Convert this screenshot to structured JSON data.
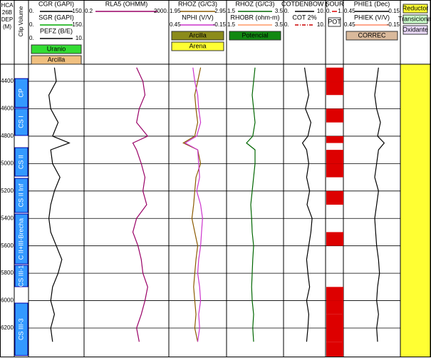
{
  "chart_data": {
    "type": "well-log",
    "depth_header": [
      "HCA",
      "26B",
      "DEP",
      "(M)"
    ],
    "zone_header": "Clip Volume",
    "ylim": [
      4275,
      6408
    ],
    "yticks": [
      4400,
      4600,
      4800,
      5000,
      5200,
      5400,
      5600,
      5800,
      6000,
      6200
    ],
    "depth": [
      4300,
      4400,
      4500,
      4600,
      4700,
      4800,
      4850,
      4900,
      5000,
      5100,
      5200,
      5300,
      5400,
      5500,
      5600,
      5700,
      5800,
      5900,
      6000,
      6100,
      6200,
      6300
    ],
    "zones": [
      {
        "label": "CP",
        "top": 4380,
        "base": 4590
      },
      {
        "label": "CS I",
        "top": 4598,
        "base": 4795
      },
      {
        "label": "CS II",
        "top": 4884,
        "base": 5092
      },
      {
        "label": "CS II Inf",
        "top": 5108,
        "base": 5357
      },
      {
        "label": "C II+III-Brecha",
        "top": 5368,
        "base": 5732
      },
      {
        "label": "CS III-1",
        "top": 5742,
        "base": 5898
      },
      {
        "label": "CS III-3",
        "top": 6018,
        "base": 6400
      }
    ],
    "tracks": [
      {
        "curves": [
          {
            "name": "CGR (GAPI)",
            "color": "#000000",
            "xlim": [
              0,
              150
            ],
            "xticks": [
              {
                "value": 0,
                "label": "0."
              },
              {
                "value": 150,
                "label": "150."
              }
            ],
            "values": [
              70,
              75,
              55,
              60,
              80,
              65,
              110,
              60,
              65,
              85,
              70,
              60,
              55,
              60,
              75,
              90,
              80,
              65,
              60,
              70,
              60,
              65
            ]
          },
          {
            "name": "SGR (GAPI)",
            "color": "#00aa00",
            "xlim": [
              0,
              150
            ],
            "xticks": [
              {
                "value": 0,
                "label": "0."
              },
              {
                "value": 150,
                "label": "150."
              }
            ]
          },
          {
            "name": "PEFZ (B/E)",
            "color": "#000000",
            "xlim": [
              0,
              10
            ],
            "xticks": [
              {
                "value": 0,
                "label": "0."
              },
              {
                "value": 10,
                "label": "10."
              }
            ]
          }
        ],
        "legends": [
          {
            "label": "Uranio",
            "color": "#33dd33"
          },
          {
            "label": "Arcilla",
            "color": "#f0c080"
          }
        ]
      },
      {
        "curves": [
          {
            "name": "RLA5 (OHMM)",
            "color": "#990066",
            "log": true,
            "xlim": [
              0.2,
              2000
            ],
            "xticks": [
              0.2,
              {
                "value": 2000,
                "label": "2000."
              }
            ],
            "values": [
              60,
              120,
              150,
              80,
              60,
              200,
              40,
              60,
              100,
              150,
              120,
              180,
              60,
              40,
              70,
              100,
              120,
              200,
              150,
              100,
              60,
              80
            ]
          }
        ],
        "legends": []
      },
      {
        "curves": [
          {
            "name": "RHOZ (G/C3)",
            "color": "#8b5a00",
            "xlim": [
              1.95,
              2.95
            ],
            "xticks": [
              1.95,
              2.95
            ],
            "values": [
              2.5,
              2.45,
              2.4,
              2.42,
              2.45,
              2.4,
              2.2,
              2.45,
              2.5,
              2.42,
              2.4,
              2.38,
              2.35,
              2.4,
              2.45,
              2.42,
              2.4,
              2.38,
              2.4,
              2.42,
              2.4,
              2.45
            ]
          },
          {
            "name": "NPHI (V/V)",
            "color": "#cc33cc",
            "xlim": [
              0.45,
              -0.15
            ],
            "xticks": [
              0.45,
              -0.15
            ],
            "values": [
              0.2,
              0.18,
              0.15,
              0.14,
              0.12,
              0.16,
              0.28,
              0.15,
              0.14,
              0.13,
              0.16,
              0.12,
              0.1,
              0.11,
              0.12,
              0.14,
              0.15,
              0.13,
              0.12,
              0.14,
              0.13,
              0.15
            ]
          }
        ],
        "legends": [
          {
            "label": "Arcilla",
            "color": "#8b8b1a"
          },
          {
            "label": "Arena",
            "color": "#ffff33"
          }
        ]
      },
      {
        "curves": [
          {
            "name": "RHOZ (G/C3)",
            "color": "#006600",
            "xlim": [
              1.5,
              3.5
            ],
            "xticks": [
              1.5,
              3.5
            ],
            "values": [
              2.5,
              2.45,
              2.4,
              2.45,
              2.5,
              2.42,
              2.2,
              2.5,
              2.5,
              2.45,
              2.4,
              2.35,
              2.38,
              2.4,
              2.45,
              2.42,
              2.4,
              2.38,
              2.4,
              2.45,
              2.42,
              2.45
            ]
          },
          {
            "name": "RHOBR (ohm-m)",
            "color": "#ff9966",
            "xlim": [
              1.5,
              3.5
            ],
            "xticks": [
              1.5,
              3.5
            ]
          }
        ],
        "legends": [
          {
            "label": "Potencial",
            "color": "#118811"
          }
        ]
      },
      {
        "curves": [
          {
            "name": "COTDENBOW (",
            "color": "#000000",
            "xlim": [
              0,
              10
            ],
            "xticks": [
              {
                "value": 0,
                "label": "0."
              },
              {
                "value": 10,
                "label": "10."
              }
            ],
            "values": [
              5,
              5.5,
              6,
              5.2,
              6.5,
              5.8,
              4.5,
              5.5,
              6,
              5.5,
              6.2,
              5.6,
              6.8,
              6.5,
              6,
              5.5,
              5.8,
              6.2,
              5.5,
              6,
              5.8,
              5.5
            ]
          },
          {
            "name": "COT 2%",
            "color": "#cc0000",
            "xlim": [
              0,
              10
            ],
            "xticks": [
              {
                "value": 0,
                "label": "0."
              },
              {
                "value": 10,
                "label": "10."
              }
            ]
          }
        ],
        "legends": []
      },
      {
        "curves": [
          {
            "name": "SOUR",
            "color": "#dd0000",
            "step": true,
            "xlim": [
              0,
              1
            ],
            "xticks": [
              {
                "value": 0,
                "label": "0."
              },
              {
                "value": 1,
                "label": "1."
              }
            ],
            "values": [
              1,
              1,
              0,
              1,
              0,
              1,
              0,
              1,
              1,
              0,
              1,
              0,
              0,
              1,
              0,
              0,
              0,
              1,
              1,
              1,
              1,
              1
            ]
          }
        ],
        "legends": [
          {
            "label": "POT",
            "color": "#ffffff"
          }
        ]
      },
      {
        "curves": [
          {
            "name": "PHIE1 (Dec)",
            "color": "#000000",
            "xlim": [
              0.45,
              -0.15
            ],
            "xticks": [
              0.45,
              -0.15
            ],
            "values": [
              0.08,
              0.1,
              0.12,
              0.1,
              0.06,
              0.09,
              0.02,
              0.08,
              0.1,
              0.12,
              0.08,
              0.1,
              0.12,
              0.11,
              0.1,
              0.08,
              0.07,
              0.09,
              0.1,
              0.08,
              0.1,
              0.09
            ]
          },
          {
            "name": "PHIEK (V/V)",
            "color": "#ff8866",
            "xlim": [
              0.45,
              -0.15
            ],
            "xticks": [
              0.45,
              -0.15
            ]
          }
        ],
        "legends": [
          {
            "label": "CORREC",
            "color": "#d9b99b"
          }
        ]
      },
      {
        "curves": [],
        "legends": [
          {
            "label": "Reductor",
            "color": "#ffff33"
          },
          {
            "label": "Transicional",
            "color": "#ccffcc"
          },
          {
            "label": "Oxidante",
            "color": "#eeddff"
          }
        ]
      }
    ]
  }
}
